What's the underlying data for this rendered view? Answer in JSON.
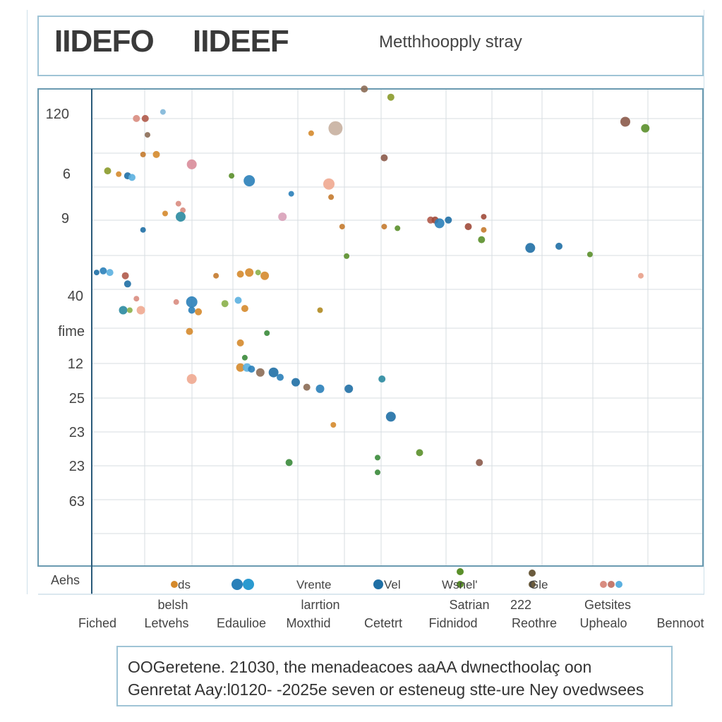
{
  "header": {
    "title_left": "IIDEFO",
    "title_mid": "IIDEEF",
    "title_right": "Metthhoopply stray"
  },
  "caption": {
    "line1": "OOGeretene. 21030, the menadeacoes aaAA dwnecthoolaç oon",
    "line2": "Genretat Aay:l0120- -2025e seven or esteneug stte-ure Ney ovedwsees"
  },
  "chart_data": {
    "type": "scatter",
    "title": "",
    "xlabel": "",
    "ylabel": "",
    "y_tick_labels": [
      "120",
      "6",
      "9",
      "40",
      "fime",
      "12",
      "25",
      "23",
      "23",
      "63"
    ],
    "y_side_label": "Aehs",
    "x_tick_labels_top": [
      "belsh",
      "larrtion",
      "Satrian",
      "222",
      "Getsites"
    ],
    "x_tick_labels": [
      "Fiched",
      "Letvehs",
      "Edaulioe",
      "Moxthid",
      "Cetetrt",
      "Fidnidod",
      "Reothre",
      "Uphealo",
      "Bennoot"
    ],
    "legend": {
      "placement": "bottom",
      "entries": [
        {
          "label": "ds",
          "color": "#d58a2c"
        },
        {
          "label": "",
          "color": "#2a80b9"
        },
        {
          "label": "Vrente",
          "color": "#2a80b9"
        },
        {
          "label": "Vel",
          "color": "#1f6fa5"
        },
        {
          "label": "Wsnel'",
          "color": "#5a8f2a"
        },
        {
          "label": "Gle",
          "color": "#6b5b3d"
        },
        {
          "label": "",
          "color": "#d98c80"
        }
      ]
    },
    "grid": true,
    "xlim": [
      0,
      13
    ],
    "ylim": [
      0,
      14
    ],
    "points": [
      {
        "x": 0.85,
        "y": 13.4,
        "c": "#d98c80",
        "s": 5
      },
      {
        "x": 1.05,
        "y": 13.4,
        "c": "#b05a4a",
        "s": 5
      },
      {
        "x": 1.45,
        "y": 13.6,
        "c": "#7fb6d8",
        "s": 4
      },
      {
        "x": 1.1,
        "y": 12.9,
        "c": "#8b6b55",
        "s": 4
      },
      {
        "x": 1.0,
        "y": 12.3,
        "c": "#c47a2e",
        "s": 4
      },
      {
        "x": 1.3,
        "y": 12.3,
        "c": "#d58a2c",
        "s": 5
      },
      {
        "x": 0.2,
        "y": 11.8,
        "c": "#8a9a2a",
        "s": 5
      },
      {
        "x": 0.45,
        "y": 11.7,
        "c": "#d58a2c",
        "s": 4
      },
      {
        "x": 0.65,
        "y": 11.65,
        "c": "#1f6fa5",
        "s": 5
      },
      {
        "x": 0.75,
        "y": 11.6,
        "c": "#5bb0e0",
        "s": 5
      },
      {
        "x": 2.1,
        "y": 12.0,
        "c": "#d98c9a",
        "s": 7
      },
      {
        "x": 3.0,
        "y": 11.65,
        "c": "#5a8f2a",
        "s": 4
      },
      {
        "x": 3.4,
        "y": 11.5,
        "c": "#2a80b9",
        "s": 8
      },
      {
        "x": 5.2,
        "y": 11.4,
        "c": "#f0a890",
        "s": 8
      },
      {
        "x": 5.25,
        "y": 11.0,
        "c": "#c47a2e",
        "s": 4
      },
      {
        "x": 4.35,
        "y": 11.1,
        "c": "#2a80b9",
        "s": 4
      },
      {
        "x": 1.8,
        "y": 10.8,
        "c": "#d98c80",
        "s": 4
      },
      {
        "x": 1.5,
        "y": 10.5,
        "c": "#d58a2c",
        "s": 4
      },
      {
        "x": 1.9,
        "y": 10.6,
        "c": "#d98c80",
        "s": 4
      },
      {
        "x": 1.85,
        "y": 10.4,
        "c": "#2a8aa0",
        "s": 7
      },
      {
        "x": 4.15,
        "y": 10.4,
        "c": "#d8a0b8",
        "s": 6
      },
      {
        "x": 1.0,
        "y": 10.0,
        "c": "#1f6fa5",
        "s": 4
      },
      {
        "x": 5.5,
        "y": 10.1,
        "c": "#c47a2e",
        "s": 4
      },
      {
        "x": 6.45,
        "y": 10.1,
        "c": "#c47a2e",
        "s": 4
      },
      {
        "x": 6.75,
        "y": 10.05,
        "c": "#5a8f2a",
        "s": 4
      },
      {
        "x": 7.5,
        "y": 10.3,
        "c": "#b05a4a",
        "s": 5
      },
      {
        "x": 7.6,
        "y": 10.3,
        "c": "#a04a3a",
        "s": 5
      },
      {
        "x": 7.7,
        "y": 10.2,
        "c": "#2a80b9",
        "s": 7
      },
      {
        "x": 7.9,
        "y": 10.3,
        "c": "#1f6fa5",
        "s": 5
      },
      {
        "x": 8.35,
        "y": 10.1,
        "c": "#a04a3a",
        "s": 5
      },
      {
        "x": 8.7,
        "y": 10.4,
        "c": "#a04a3a",
        "s": 4
      },
      {
        "x": 8.7,
        "y": 10.0,
        "c": "#c47a2e",
        "s": 4
      },
      {
        "x": 8.65,
        "y": 9.7,
        "c": "#5a8f2a",
        "s": 5
      },
      {
        "x": 9.75,
        "y": 9.45,
        "c": "#1f6fa5",
        "s": 7
      },
      {
        "x": 10.4,
        "y": 9.5,
        "c": "#1f6fa5",
        "s": 5
      },
      {
        "x": 11.1,
        "y": 9.25,
        "c": "#5a8f2a",
        "s": 4
      },
      {
        "x": 5.6,
        "y": 9.2,
        "c": "#5a8f2a",
        "s": 4
      },
      {
        "x": 12.25,
        "y": 8.6,
        "c": "#e8a08a",
        "s": 4
      },
      {
        "x": -0.05,
        "y": 8.7,
        "c": "#1f6fa5",
        "s": 4
      },
      {
        "x": 0.1,
        "y": 8.75,
        "c": "#2a80b9",
        "s": 5
      },
      {
        "x": 0.25,
        "y": 8.7,
        "c": "#5bb0e0",
        "s": 5
      },
      {
        "x": 0.6,
        "y": 8.6,
        "c": "#b05a4a",
        "s": 5
      },
      {
        "x": 0.65,
        "y": 8.35,
        "c": "#1f6fa5",
        "s": 5
      },
      {
        "x": 2.65,
        "y": 8.6,
        "c": "#c47a2e",
        "s": 4
      },
      {
        "x": 3.2,
        "y": 8.65,
        "c": "#d58a2c",
        "s": 5
      },
      {
        "x": 3.4,
        "y": 8.7,
        "c": "#d58a2c",
        "s": 6
      },
      {
        "x": 3.6,
        "y": 8.7,
        "c": "#8ab04a",
        "s": 4
      },
      {
        "x": 3.75,
        "y": 8.6,
        "c": "#d58a2c",
        "s": 6
      },
      {
        "x": 0.85,
        "y": 7.9,
        "c": "#d98c80",
        "s": 4
      },
      {
        "x": 2.1,
        "y": 7.8,
        "c": "#2a80b9",
        "s": 8
      },
      {
        "x": 2.85,
        "y": 7.75,
        "c": "#8ab04a",
        "s": 5
      },
      {
        "x": 3.15,
        "y": 7.85,
        "c": "#5bb0e0",
        "s": 5
      },
      {
        "x": 1.75,
        "y": 7.8,
        "c": "#d98c80",
        "s": 4
      },
      {
        "x": 0.55,
        "y": 7.55,
        "c": "#2a8aa0",
        "s": 6
      },
      {
        "x": 0.7,
        "y": 7.55,
        "c": "#8ab04a",
        "s": 4
      },
      {
        "x": 0.95,
        "y": 7.55,
        "c": "#f0a890",
        "s": 6
      },
      {
        "x": 2.1,
        "y": 7.55,
        "c": "#2a80b9",
        "s": 5
      },
      {
        "x": 2.25,
        "y": 7.5,
        "c": "#d58a2c",
        "s": 5
      },
      {
        "x": 3.3,
        "y": 7.6,
        "c": "#d58a2c",
        "s": 5
      },
      {
        "x": 5.0,
        "y": 7.55,
        "c": "#b08a20",
        "s": 4
      },
      {
        "x": 2.05,
        "y": 6.9,
        "c": "#d58a2c",
        "s": 5
      },
      {
        "x": 3.8,
        "y": 6.85,
        "c": "#3a8a3a",
        "s": 4
      },
      {
        "x": 3.2,
        "y": 6.55,
        "c": "#d58a2c",
        "s": 5
      },
      {
        "x": 3.3,
        "y": 6.1,
        "c": "#3a8a3a",
        "s": 4
      },
      {
        "x": 3.2,
        "y": 5.8,
        "c": "#d58a2c",
        "s": 6
      },
      {
        "x": 3.35,
        "y": 5.8,
        "c": "#5bb0e0",
        "s": 6
      },
      {
        "x": 3.45,
        "y": 5.75,
        "c": "#2a80b9",
        "s": 5
      },
      {
        "x": 3.65,
        "y": 5.65,
        "c": "#8b6b55",
        "s": 6
      },
      {
        "x": 3.95,
        "y": 5.65,
        "c": "#1f6fa5",
        "s": 7
      },
      {
        "x": 4.1,
        "y": 5.5,
        "c": "#2a80b9",
        "s": 5
      },
      {
        "x": 4.45,
        "y": 5.35,
        "c": "#1f6fa5",
        "s": 6
      },
      {
        "x": 4.7,
        "y": 5.2,
        "c": "#8b6b55",
        "s": 5
      },
      {
        "x": 5.0,
        "y": 5.15,
        "c": "#2a80b9",
        "s": 6
      },
      {
        "x": 5.65,
        "y": 5.15,
        "c": "#1f6fa5",
        "s": 6
      },
      {
        "x": 6.4,
        "y": 5.45,
        "c": "#2a8aa0",
        "s": 5
      },
      {
        "x": 2.1,
        "y": 5.45,
        "c": "#f0a890",
        "s": 7
      },
      {
        "x": 6.6,
        "y": 4.3,
        "c": "#1f6fa5",
        "s": 7
      },
      {
        "x": 5.3,
        "y": 4.05,
        "c": "#d58a2c",
        "s": 4
      },
      {
        "x": 7.25,
        "y": 3.2,
        "c": "#5a8f2a",
        "s": 5
      },
      {
        "x": 4.3,
        "y": 2.9,
        "c": "#3a8a3a",
        "s": 5
      },
      {
        "x": 6.3,
        "y": 3.05,
        "c": "#3a8a3a",
        "s": 4
      },
      {
        "x": 8.6,
        "y": 2.9,
        "c": "#8b5a4a",
        "s": 5
      },
      {
        "x": 6.3,
        "y": 2.6,
        "c": "#3a8a3a",
        "s": 4
      },
      {
        "x": 6.0,
        "y": 14.3,
        "c": "#8b6b55",
        "s": 5
      },
      {
        "x": 6.6,
        "y": 14.05,
        "c": "#8a9a2a",
        "s": 5
      },
      {
        "x": 5.35,
        "y": 13.1,
        "c": "#c8b0a0",
        "s": 10
      },
      {
        "x": 4.8,
        "y": 12.95,
        "c": "#d58a2c",
        "s": 4
      },
      {
        "x": 6.45,
        "y": 12.2,
        "c": "#8b5a4a",
        "s": 5
      },
      {
        "x": 11.9,
        "y": 13.3,
        "c": "#8b5a4a",
        "s": 7
      },
      {
        "x": 12.35,
        "y": 13.1,
        "c": "#5a8f2a",
        "s": 6
      }
    ]
  }
}
